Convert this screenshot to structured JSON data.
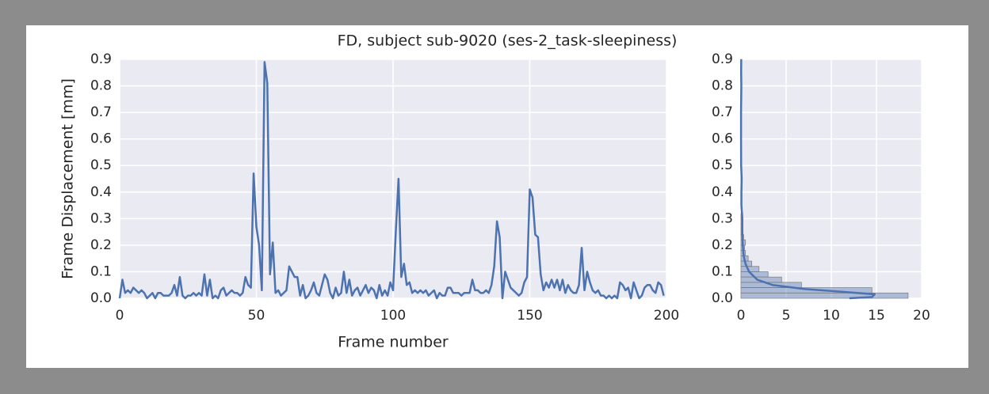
{
  "chart_data": [
    {
      "type": "line",
      "title": "FD, subject sub-9020 (ses-2_task-sleepiness)",
      "xlabel": "Frame number",
      "ylabel": "Frame Displacement [mm]",
      "x": [
        0,
        1,
        2,
        3,
        4,
        5,
        6,
        7,
        8,
        9,
        10,
        11,
        12,
        13,
        14,
        15,
        16,
        17,
        18,
        19,
        20,
        21,
        22,
        23,
        24,
        25,
        26,
        27,
        28,
        29,
        30,
        31,
        32,
        33,
        34,
        35,
        36,
        37,
        38,
        39,
        40,
        41,
        42,
        43,
        44,
        45,
        46,
        47,
        48,
        49,
        50,
        51,
        52,
        53,
        54,
        55,
        56,
        57,
        58,
        59,
        60,
        61,
        62,
        63,
        64,
        65,
        66,
        67,
        68,
        69,
        70,
        71,
        72,
        73,
        74,
        75,
        76,
        77,
        78,
        79,
        80,
        81,
        82,
        83,
        84,
        85,
        86,
        87,
        88,
        89,
        90,
        91,
        92,
        93,
        94,
        95,
        96,
        97,
        98,
        99,
        100,
        101,
        102,
        103,
        104,
        105,
        106,
        107,
        108,
        109,
        110,
        111,
        112,
        113,
        114,
        115,
        116,
        117,
        118,
        119,
        120,
        121,
        122,
        123,
        124,
        125,
        126,
        127,
        128,
        129,
        130,
        131,
        132,
        133,
        134,
        135,
        136,
        137,
        138,
        139,
        140,
        141,
        142,
        143,
        144,
        145,
        146,
        147,
        148,
        149,
        150,
        151,
        152,
        153,
        154,
        155,
        156,
        157,
        158,
        159,
        160,
        161,
        162,
        163,
        164,
        165,
        166,
        167,
        168,
        169,
        170,
        171,
        172,
        173,
        174,
        175,
        176,
        177,
        178,
        179,
        180,
        181,
        182,
        183,
        184,
        185,
        186,
        187,
        188,
        189,
        190,
        191,
        192,
        193,
        194,
        195,
        196,
        197,
        198,
        199
      ],
      "series": [
        {
          "color": "#4c72b0",
          "values": [
            0.0,
            0.07,
            0.02,
            0.03,
            0.02,
            0.04,
            0.03,
            0.02,
            0.03,
            0.02,
            0.0,
            0.01,
            0.02,
            0.0,
            0.02,
            0.02,
            0.01,
            0.01,
            0.01,
            0.02,
            0.05,
            0.01,
            0.08,
            0.01,
            0.0,
            0.01,
            0.01,
            0.02,
            0.01,
            0.02,
            0.01,
            0.09,
            0.01,
            0.07,
            0.0,
            0.01,
            0.0,
            0.03,
            0.04,
            0.01,
            0.02,
            0.03,
            0.02,
            0.02,
            0.01,
            0.02,
            0.08,
            0.05,
            0.04,
            0.47,
            0.27,
            0.2,
            0.03,
            0.89,
            0.81,
            0.09,
            0.21,
            0.02,
            0.03,
            0.01,
            0.02,
            0.03,
            0.12,
            0.1,
            0.08,
            0.08,
            0.01,
            0.05,
            0.0,
            0.01,
            0.03,
            0.06,
            0.02,
            0.01,
            0.05,
            0.09,
            0.07,
            0.02,
            0.0,
            0.04,
            0.01,
            0.02,
            0.1,
            0.02,
            0.07,
            0.01,
            0.03,
            0.04,
            0.01,
            0.03,
            0.05,
            0.02,
            0.04,
            0.03,
            0.0,
            0.05,
            0.01,
            0.03,
            0.01,
            0.06,
            0.03,
            0.25,
            0.45,
            0.08,
            0.13,
            0.05,
            0.06,
            0.02,
            0.03,
            0.02,
            0.03,
            0.02,
            0.03,
            0.01,
            0.02,
            0.03,
            0.0,
            0.02,
            0.01,
            0.01,
            0.04,
            0.04,
            0.02,
            0.02,
            0.02,
            0.01,
            0.02,
            0.02,
            0.02,
            0.07,
            0.03,
            0.03,
            0.02,
            0.02,
            0.03,
            0.02,
            0.05,
            0.12,
            0.29,
            0.23,
            0.0,
            0.1,
            0.07,
            0.04,
            0.03,
            0.02,
            0.01,
            0.02,
            0.06,
            0.08,
            0.41,
            0.38,
            0.24,
            0.23,
            0.09,
            0.03,
            0.06,
            0.04,
            0.07,
            0.04,
            0.07,
            0.03,
            0.07,
            0.02,
            0.05,
            0.03,
            0.02,
            0.02,
            0.05,
            0.19,
            0.03,
            0.1,
            0.06,
            0.03,
            0.02,
            0.03,
            0.01,
            0.01,
            0.0,
            0.01,
            0.0,
            0.01,
            0.0,
            0.06,
            0.05,
            0.03,
            0.04,
            0.0,
            0.06,
            0.03,
            0.0,
            0.01,
            0.04,
            0.05,
            0.05,
            0.03,
            0.02,
            0.06,
            0.05,
            0.01
          ]
        }
      ],
      "xlim": [
        0,
        200
      ],
      "xticks": [
        0,
        50,
        100,
        150,
        200
      ],
      "ylim": [
        0,
        0.9
      ],
      "yticks": [
        {
          "value": 0,
          "label": "0.0"
        },
        0.1,
        0.2,
        0.3,
        0.4,
        0.5,
        0.6,
        0.7,
        0.8,
        0.9
      ],
      "grid": true
    },
    {
      "type": "histogram",
      "orientation": "horizontal",
      "color": "#4c72b0",
      "bins": [
        0,
        0.02,
        0.04,
        0.06,
        0.08,
        0.1,
        0.12,
        0.14,
        0.16,
        0.18,
        0.2,
        0.22,
        0.24,
        0.26,
        0.28,
        0.3,
        0.32,
        0.34,
        0.36,
        0.38,
        0.4,
        0.42,
        0.44,
        0.46,
        0.48,
        0.5,
        0.52,
        0.54,
        0.56,
        0.58,
        0.6,
        0.62,
        0.64,
        0.66,
        0.68,
        0.7,
        0.72,
        0.74,
        0.76,
        0.78,
        0.8,
        0.82,
        0.84,
        0.86,
        0.88,
        0.9
      ],
      "counts": [
        18.5,
        14.5,
        6.7,
        4.5,
        3.0,
        2.0,
        1.2,
        0.8,
        0.5,
        0.4,
        0.5,
        0.3,
        0.2,
        0.2,
        0.1,
        0.2,
        0,
        0,
        0,
        0,
        0.1,
        0,
        0.1,
        0,
        0,
        0,
        0,
        0,
        0,
        0,
        0,
        0,
        0,
        0,
        0,
        0,
        0,
        0,
        0,
        0,
        0.1,
        0,
        0,
        0,
        0.1
      ],
      "kde": {
        "y": [
          0,
          0.005,
          0.015,
          0.025,
          0.035,
          0.05,
          0.07,
          0.1,
          0.13,
          0.16,
          0.2,
          0.25,
          0.3,
          0.35,
          0.4,
          0.45,
          0.5,
          0.6,
          0.7,
          0.8,
          0.85,
          0.9
        ],
        "density": [
          12,
          14.5,
          14.8,
          11,
          7,
          3.5,
          1.8,
          0.9,
          0.5,
          0.3,
          0.2,
          0.15,
          0.15,
          0.05,
          0.05,
          0.08,
          0.02,
          0.01,
          0.01,
          0.04,
          0.02,
          0.03
        ]
      },
      "xlim": [
        0,
        20
      ],
      "xticks": [
        0,
        5,
        10,
        15,
        20
      ],
      "ylim": [
        0,
        0.9
      ],
      "yticks": [
        {
          "value": 0,
          "label": "0.0"
        },
        0.1,
        0.2,
        0.3,
        0.4,
        0.5,
        0.6,
        0.7,
        0.8,
        0.9
      ],
      "grid": true
    }
  ]
}
